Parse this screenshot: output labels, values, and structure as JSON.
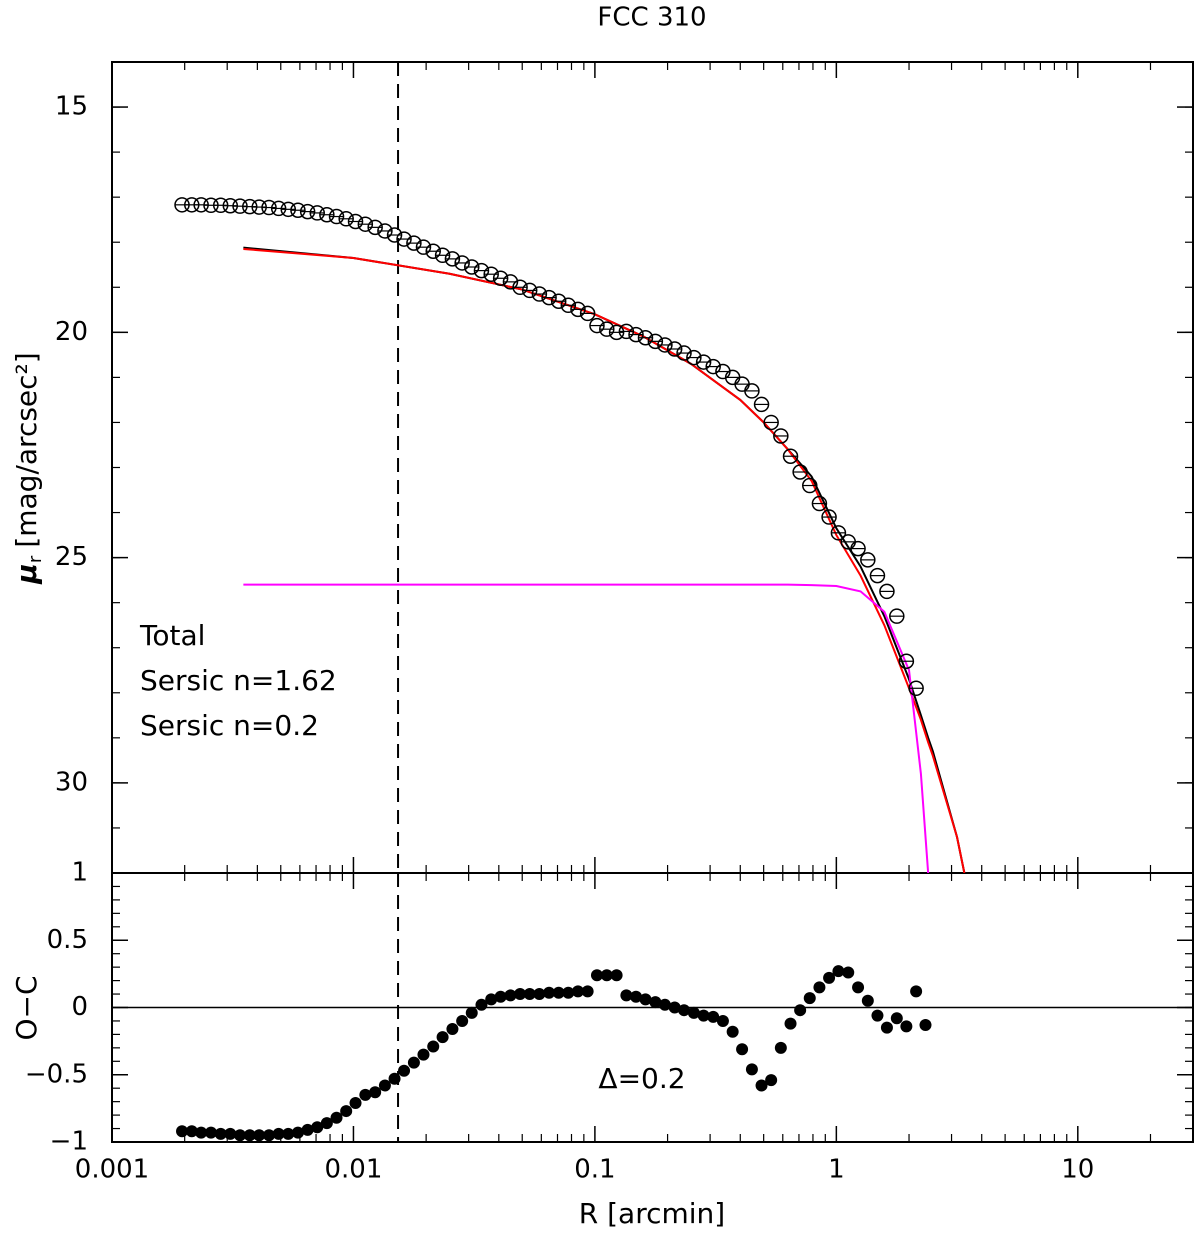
{
  "chart_data": [
    {
      "type": "profile",
      "title": "FCC 310",
      "ylabel_symbol": "μ",
      "ylabel_sub": "r",
      "ylabel_unit": "[mag/arcsec²]",
      "ylim": [
        14,
        32
      ],
      "y_inverted": true,
      "yticks": [
        15,
        20,
        25,
        30
      ],
      "vline_x": 0.0153,
      "marker_color": "#000000",
      "x": [
        0.00195,
        0.00214,
        0.00234,
        0.00257,
        0.00282,
        0.00309,
        0.00339,
        0.00372,
        0.00407,
        0.00447,
        0.0049,
        0.00537,
        0.00589,
        0.00646,
        0.00708,
        0.00776,
        0.00851,
        0.00933,
        0.0102,
        0.0112,
        0.0123,
        0.0135,
        0.0148,
        0.0162,
        0.0178,
        0.0195,
        0.0214,
        0.0234,
        0.0257,
        0.0282,
        0.0309,
        0.0339,
        0.0372,
        0.0407,
        0.0447,
        0.049,
        0.0537,
        0.0589,
        0.0646,
        0.0708,
        0.0776,
        0.0851,
        0.0933,
        0.102,
        0.112,
        0.123,
        0.135,
        0.148,
        0.162,
        0.178,
        0.195,
        0.214,
        0.234,
        0.257,
        0.282,
        0.309,
        0.339,
        0.372,
        0.407,
        0.447,
        0.49,
        0.537,
        0.589,
        0.646,
        0.708,
        0.776,
        0.851,
        0.933,
        1.02,
        1.12,
        1.23,
        1.35,
        1.48,
        1.62,
        1.78,
        1.95,
        2.14,
        2.34
      ],
      "values": [
        17.17,
        17.17,
        17.17,
        17.18,
        17.18,
        17.19,
        17.2,
        17.21,
        17.22,
        17.23,
        17.25,
        17.27,
        17.29,
        17.32,
        17.35,
        17.39,
        17.43,
        17.48,
        17.54,
        17.6,
        17.67,
        17.75,
        17.84,
        17.93,
        18.02,
        18.11,
        18.2,
        18.29,
        18.37,
        18.46,
        18.55,
        18.63,
        18.71,
        18.8,
        18.88,
        19.0,
        19.07,
        19.15,
        19.23,
        19.31,
        19.4,
        19.49,
        19.58,
        19.85,
        19.93,
        20.0,
        19.98,
        20.05,
        20.12,
        20.2,
        20.28,
        20.37,
        20.46,
        20.56,
        20.66,
        20.76,
        20.87,
        21.0,
        21.15,
        21.3,
        21.6,
        22.0,
        22.3,
        22.75,
        23.1,
        23.4,
        23.8,
        24.1,
        24.45,
        24.65,
        24.8,
        25.05,
        25.4,
        25.75,
        26.3,
        27.3,
        27.9,
        null
      ],
      "curves": {
        "x": [
          0.0035,
          0.01,
          0.025,
          0.05,
          0.1,
          0.16,
          0.25,
          0.4,
          0.5,
          0.63,
          0.79,
          1,
          1.26,
          1.58,
          2,
          2.24,
          2.4,
          2.51,
          3.16,
          3.39
        ],
        "series": [
          {
            "name": "Total",
            "color": "#000000",
            "values": [
              18.12,
              18.35,
              18.7,
              19.05,
              19.6,
              20.1,
              20.7,
              21.5,
              22.0,
              22.6,
              23.2,
              24.35,
              25.2,
              26.3,
              27.7,
              28.5,
              29.0,
              29.3,
              31.2,
              32
            ]
          },
          {
            "name": "Sersic n=1.62",
            "color": "#ff0000",
            "values": [
              18.15,
              18.35,
              18.7,
              19.05,
              19.6,
              20.1,
              20.7,
              21.5,
              22.0,
              22.6,
              23.3,
              24.5,
              25.4,
              26.5,
              27.9,
              28.6,
              29.1,
              29.4,
              31.2,
              32
            ]
          },
          {
            "name": "Sersic n=0.2",
            "color": "#ff00ff",
            "values": [
              25.6,
              25.6,
              25.6,
              25.6,
              25.6,
              25.6,
              25.6,
              25.6,
              25.6,
              25.6,
              25.61,
              25.63,
              25.75,
              26.2,
              27.5,
              29.8,
              32,
              null,
              null,
              null
            ]
          }
        ]
      }
    },
    {
      "type": "scatter",
      "xlabel": "R [arcmin]",
      "ylabel": "O−C",
      "annotation": "Δ=0.2",
      "xlim": [
        0.001,
        30
      ],
      "log_x": true,
      "xticks": [
        0.001,
        0.01,
        0.1,
        1,
        10
      ],
      "ylim": [
        -1,
        1
      ],
      "yticks": [
        {
          "value": -1,
          "label": "−1"
        },
        {
          "value": -0.5,
          "label": "−0.5"
        },
        0,
        0.5,
        1
      ],
      "hline": 0,
      "color": "#000000",
      "x": [
        0.00195,
        0.00214,
        0.00234,
        0.00257,
        0.00282,
        0.00309,
        0.00339,
        0.00372,
        0.00407,
        0.00447,
        0.0049,
        0.00537,
        0.00589,
        0.00646,
        0.00708,
        0.00776,
        0.00851,
        0.00933,
        0.0102,
        0.0112,
        0.0123,
        0.0135,
        0.0148,
        0.0162,
        0.0178,
        0.0195,
        0.0214,
        0.0234,
        0.0257,
        0.0282,
        0.0309,
        0.0339,
        0.0372,
        0.0407,
        0.0447,
        0.049,
        0.0537,
        0.0589,
        0.0646,
        0.0708,
        0.0776,
        0.0851,
        0.0933,
        0.102,
        0.112,
        0.123,
        0.135,
        0.148,
        0.162,
        0.178,
        0.195,
        0.214,
        0.234,
        0.257,
        0.282,
        0.309,
        0.339,
        0.372,
        0.407,
        0.447,
        0.49,
        0.537,
        0.589,
        0.646,
        0.708,
        0.776,
        0.851,
        0.933,
        1.02,
        1.12,
        1.23,
        1.35,
        1.48,
        1.62,
        1.78,
        1.95,
        2.14,
        2.34
      ],
      "values": [
        -0.92,
        -0.92,
        -0.93,
        -0.93,
        -0.94,
        -0.94,
        -0.95,
        -0.95,
        -0.95,
        -0.95,
        -0.94,
        -0.94,
        -0.93,
        -0.91,
        -0.89,
        -0.86,
        -0.82,
        -0.77,
        -0.71,
        -0.65,
        -0.63,
        -0.58,
        -0.53,
        -0.47,
        -0.41,
        -0.35,
        -0.29,
        -0.22,
        -0.16,
        -0.1,
        -0.04,
        0.02,
        0.06,
        0.08,
        0.09,
        0.1,
        0.1,
        0.1,
        0.11,
        0.11,
        0.11,
        0.12,
        0.12,
        0.24,
        0.24,
        0.24,
        0.09,
        0.08,
        0.06,
        0.04,
        0.02,
        0,
        -0.02,
        -0.04,
        -0.06,
        -0.07,
        -0.1,
        -0.18,
        -0.31,
        -0.46,
        -0.58,
        -0.54,
        -0.3,
        -0.12,
        -0.02,
        0.07,
        0.15,
        0.22,
        0.27,
        0.26,
        0.15,
        0.05,
        -0.06,
        -0.15,
        -0.08,
        -0.14,
        0.12,
        -0.13
      ]
    }
  ]
}
